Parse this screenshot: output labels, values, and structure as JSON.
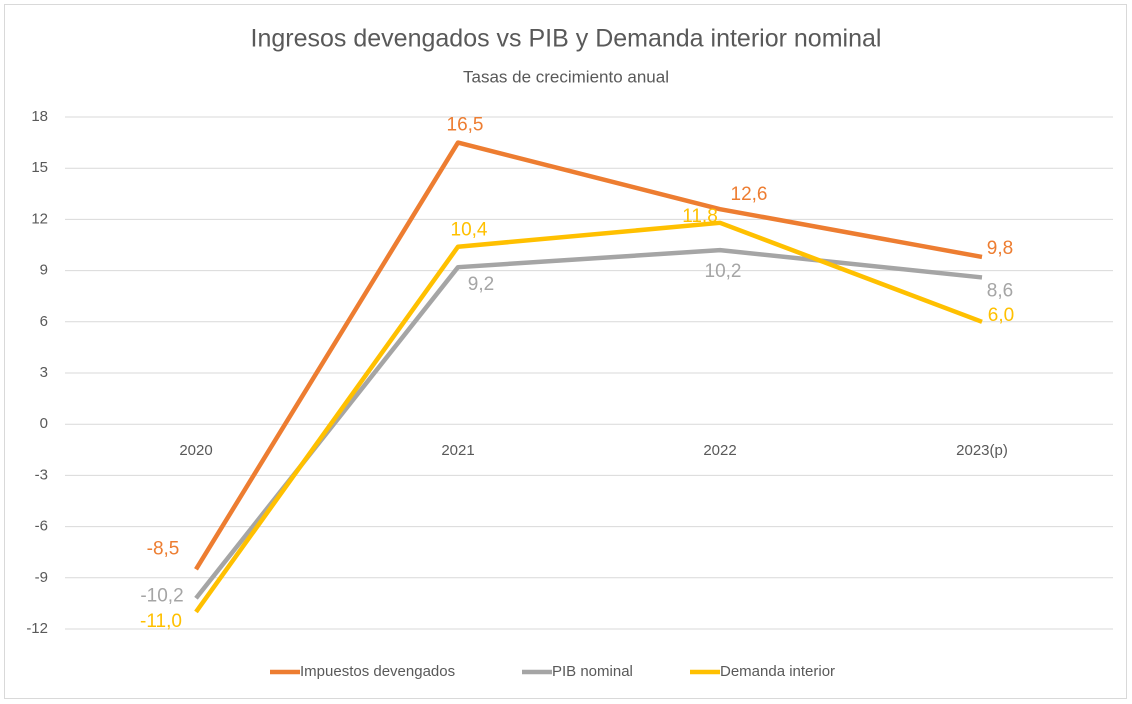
{
  "chart_data": {
    "type": "line",
    "title": "Ingresos devengados vs PIB y Demanda interior nominal",
    "subtitle": "Tasas de crecimiento anual",
    "categories": [
      "2020",
      "2021",
      "2022",
      "2023(p)"
    ],
    "series": [
      {
        "name": "Impuestos devengados",
        "color": "#ED7D31",
        "values": [
          -8.5,
          16.5,
          12.6,
          9.8
        ],
        "value_labels": [
          "-8,5",
          "16,5",
          "12,6",
          "9,8"
        ]
      },
      {
        "name": "PIB nominal",
        "color": "#A5A5A5",
        "values": [
          -10.2,
          9.2,
          10.2,
          8.6
        ],
        "value_labels": [
          "-10,2",
          "9,2",
          "10,2",
          "8,6"
        ]
      },
      {
        "name": "Demanda interior",
        "color": "#FFC000",
        "values": [
          -11.0,
          10.4,
          11.8,
          6.0
        ],
        "value_labels": [
          "-11,0",
          "10,4",
          "11,8",
          "6,0"
        ]
      }
    ],
    "ylim": [
      -12,
      18
    ],
    "yticks": [
      -12,
      -9,
      -6,
      -3,
      0,
      3,
      6,
      9,
      12,
      15,
      18
    ],
    "grid": true,
    "legend": "bottom"
  }
}
